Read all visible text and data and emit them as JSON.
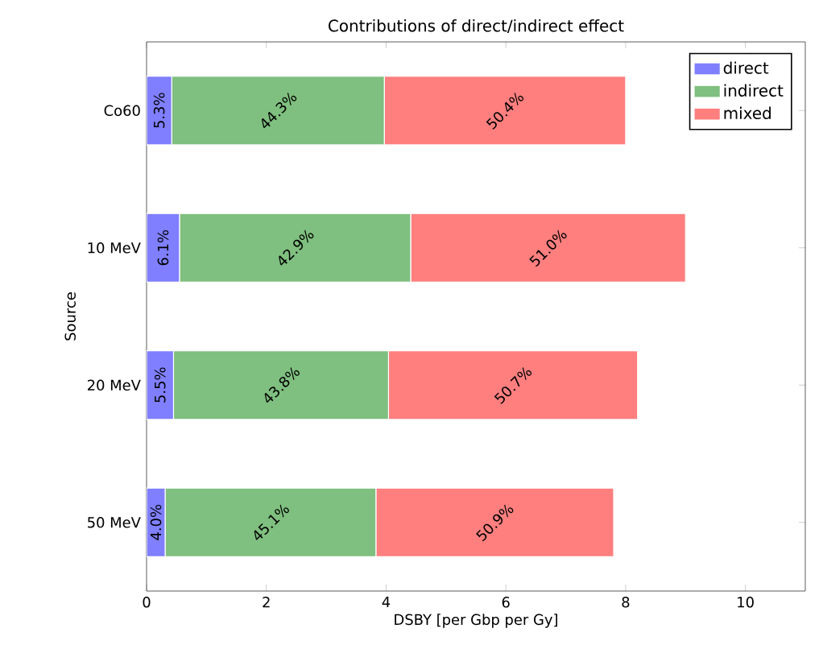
{
  "chart_data": {
    "type": "bar",
    "orientation": "horizontal",
    "stacked": true,
    "title": "Contributions of direct/indirect effect",
    "xlabel": "DSBY [per Gbp per Gy]",
    "ylabel": "Source",
    "categories": [
      "Co60",
      "10 MeV",
      "20 MeV",
      "50 MeV"
    ],
    "series": [
      {
        "name": "direct",
        "color": "#7f7fff",
        "values": [
          0.42,
          0.55,
          0.45,
          0.31
        ]
      },
      {
        "name": "indirect",
        "color": "#7fbf7f",
        "values": [
          3.55,
          3.86,
          3.59,
          3.52
        ]
      },
      {
        "name": "mixed",
        "color": "#ff7f7f",
        "values": [
          4.03,
          4.59,
          4.16,
          3.97
        ]
      }
    ],
    "annotations": [
      "5.3%",
      "6.1%",
      "5.5%",
      "4.0%",
      "44.3%",
      "42.9%",
      "43.8%",
      "45.1%",
      "50.4%",
      "51.0%",
      "50.7%",
      "50.9%"
    ],
    "xlim": [
      0,
      11
    ],
    "xticks": [
      0,
      2,
      4,
      6,
      8,
      10
    ],
    "legend": "top right",
    "grid": false
  }
}
